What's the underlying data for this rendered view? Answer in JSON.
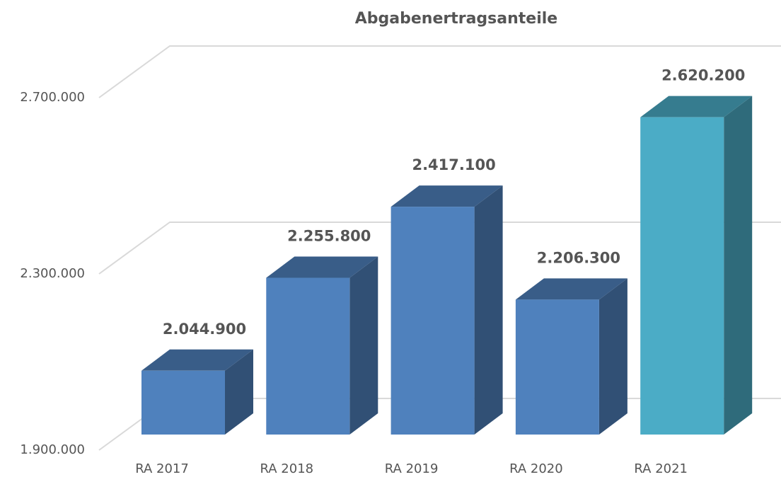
{
  "chart_data": {
    "type": "bar3d",
    "title": "Abgabenertragsanteile",
    "categories": [
      "RA 2017",
      "RA 2018",
      "RA 2019",
      "RA 2020",
      "RA 2021"
    ],
    "values": [
      2044900,
      2255800,
      2417100,
      2206300,
      2620200
    ],
    "value_labels": [
      "2.044.900",
      "2.255.800",
      "2.417.100",
      "2.206.300",
      "2.620.200"
    ],
    "colors": [
      "#4f81bd",
      "#4f81bd",
      "#4f81bd",
      "#4f81bd",
      "#4bacc6"
    ],
    "ylim": [
      1900000,
      2700000
    ],
    "yticks": [
      {
        "value": 1900000,
        "label": "1.900.000"
      },
      {
        "value": 2300000,
        "label": "2.300.000"
      },
      {
        "value": 2700000,
        "label": "2.700.000"
      }
    ],
    "grid": true
  }
}
